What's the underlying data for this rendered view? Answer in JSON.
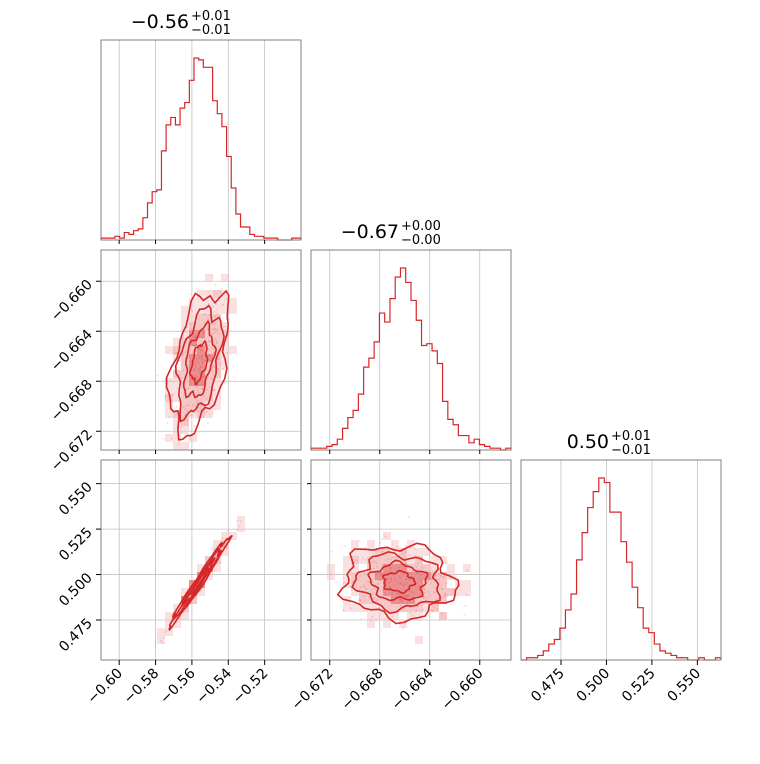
{
  "colors": {
    "accent": "#d62728",
    "fill_light": "#f4c4c4",
    "fill_mid": "#e9898a",
    "grid": "#c0c0c0",
    "frame": "#808080"
  },
  "chart_data": {
    "type": "corner",
    "grid": true,
    "parameters": [
      {
        "median": "−0.56",
        "plus": "+0.01",
        "minus": "−0.01",
        "range": [
          -0.61,
          -0.5
        ]
      },
      {
        "median": "−0.67",
        "plus": "+0.00",
        "minus": "−0.00",
        "range": [
          -0.6735,
          -0.6575
        ]
      },
      {
        "median": "0.50",
        "plus": "+0.01",
        "minus": "−0.01",
        "range": [
          0.453,
          0.563
        ]
      }
    ],
    "ticks": [
      {
        "values": [
          -0.6,
          -0.58,
          -0.56,
          -0.54,
          -0.52
        ],
        "labels": [
          "−0.60",
          "−0.58",
          "−0.56",
          "−0.54",
          "−0.52"
        ]
      },
      {
        "values": [
          -0.672,
          -0.668,
          -0.664,
          -0.66
        ],
        "labels": [
          "−0.672",
          "−0.668",
          "−0.664",
          "−0.660"
        ]
      },
      {
        "values": [
          0.475,
          0.5,
          0.525,
          0.55
        ],
        "labels": [
          "0.475",
          "0.500",
          "0.525",
          "0.550"
        ]
      }
    ],
    "histograms": [
      {
        "param": 0,
        "counts": [
          1,
          1,
          1,
          2,
          1,
          4,
          3,
          5,
          6,
          12,
          20,
          26,
          27,
          48,
          62,
          66,
          62,
          71,
          74,
          86,
          98,
          97,
          93,
          93,
          75,
          68,
          61,
          45,
          28,
          14,
          7,
          7,
          3,
          2,
          2,
          1,
          1,
          1,
          0,
          0,
          0,
          1,
          1
        ]
      },
      {
        "param": 1,
        "counts": [
          1,
          1,
          1,
          2,
          3,
          6,
          12,
          18,
          22,
          31,
          46,
          51,
          60,
          76,
          71,
          84,
          96,
          101,
          93,
          83,
          72,
          58,
          59,
          55,
          48,
          27,
          17,
          14,
          8,
          8,
          4,
          6,
          3,
          2,
          1,
          1,
          0,
          1
        ]
      },
      {
        "param": 2,
        "counts": [
          0,
          1,
          1,
          2,
          4,
          7,
          9,
          14,
          22,
          29,
          44,
          56,
          67,
          74,
          80,
          78,
          65,
          65,
          52,
          43,
          32,
          23,
          14,
          12,
          7,
          4,
          3,
          2,
          1,
          1,
          0,
          0,
          1,
          0,
          0,
          1
        ]
      }
    ],
    "pairs": [
      {
        "x": 0,
        "y": 1,
        "center": [
          -0.556,
          -0.6665
        ],
        "spread": [
          0.008,
          0.0028
        ],
        "correlation": 0.45
      },
      {
        "x": 0,
        "y": 2,
        "center": [
          -0.556,
          0.496
        ],
        "spread": [
          0.008,
          0.012
        ],
        "correlation": 0.985
      },
      {
        "x": 1,
        "y": 2,
        "center": [
          -0.6665,
          0.496
        ],
        "spread": [
          0.0022,
          0.01
        ],
        "correlation": -0.05
      }
    ]
  }
}
